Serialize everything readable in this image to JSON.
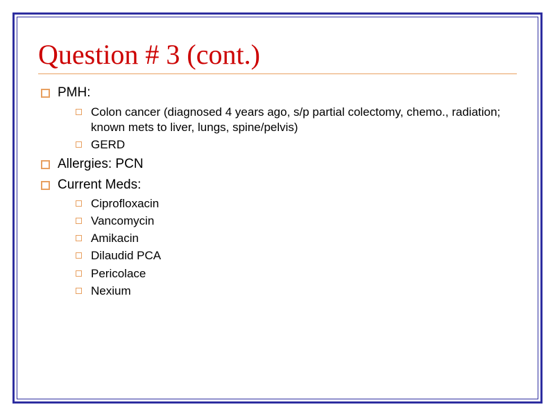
{
  "title": "Question # 3 (cont.)",
  "colors": {
    "border": "#2e2ea0",
    "title": "#cc0000",
    "bullet": "#e8a060",
    "rule": "#e8a060",
    "text": "#000000",
    "background": "#ffffff"
  },
  "typography": {
    "title_font": "Times New Roman",
    "title_size_pt": 30,
    "body_font": "Arial",
    "level1_size_pt": 14,
    "level2_size_pt": 13
  },
  "bullets": [
    {
      "text": "PMH:",
      "sub": [
        {
          "text": "Colon cancer (diagnosed 4 years ago, s/p partial colectomy, chemo., radiation; known mets to liver, lungs, spine/pelvis)"
        },
        {
          "text": "GERD"
        }
      ]
    },
    {
      "text": "Allergies: PCN",
      "sub": []
    },
    {
      "text": "Current Meds:",
      "sub": [
        {
          "text": "Ciprofloxacin"
        },
        {
          "text": "Vancomycin"
        },
        {
          "text": "Amikacin"
        },
        {
          "text": "Dilaudid PCA"
        },
        {
          "text": "Pericolace"
        },
        {
          "text": "Nexium"
        }
      ]
    }
  ]
}
